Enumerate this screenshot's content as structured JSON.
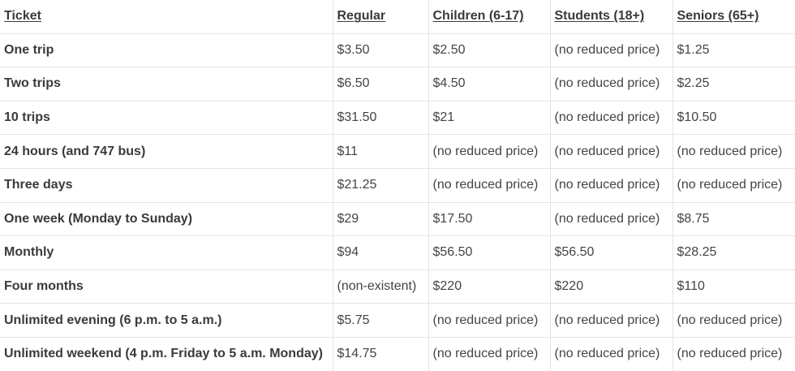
{
  "table": {
    "headers": [
      "Ticket",
      "Regular",
      "Children (6-17)",
      "Students (18+)",
      "Seniors (65+)"
    ],
    "rows": [
      [
        "One trip",
        "$3.50",
        "$2.50",
        "(no reduced price)",
        "$1.25"
      ],
      [
        "Two trips",
        "$6.50",
        "$4.50",
        "(no reduced price)",
        "$2.25"
      ],
      [
        "10 trips",
        "$31.50",
        "$21",
        "(no reduced price)",
        "$10.50"
      ],
      [
        "24 hours (and 747 bus)",
        "$11",
        "(no reduced price)",
        "(no reduced price)",
        "(no reduced price)"
      ],
      [
        "Three days",
        "$21.25",
        "(no reduced price)",
        "(no reduced price)",
        "(no reduced price)"
      ],
      [
        "One week (Monday to Sunday)",
        "$29",
        "$17.50",
        "(no reduced price)",
        "$8.75"
      ],
      [
        "Monthly",
        "$94",
        "$56.50",
        "$56.50",
        "$28.25"
      ],
      [
        "Four months",
        "(non-existent)",
        "$220",
        "$220",
        "$110"
      ],
      [
        "Unlimited evening (6 p.m. to 5 a.m.)",
        "$5.75",
        "(no reduced price)",
        "(no reduced price)",
        "(no reduced price)"
      ],
      [
        "Unlimited weekend (4 p.m. Friday to 5 a.m. Monday)",
        "$14.75",
        "(no reduced price)",
        "(no reduced price)",
        "(no reduced price)"
      ]
    ]
  }
}
